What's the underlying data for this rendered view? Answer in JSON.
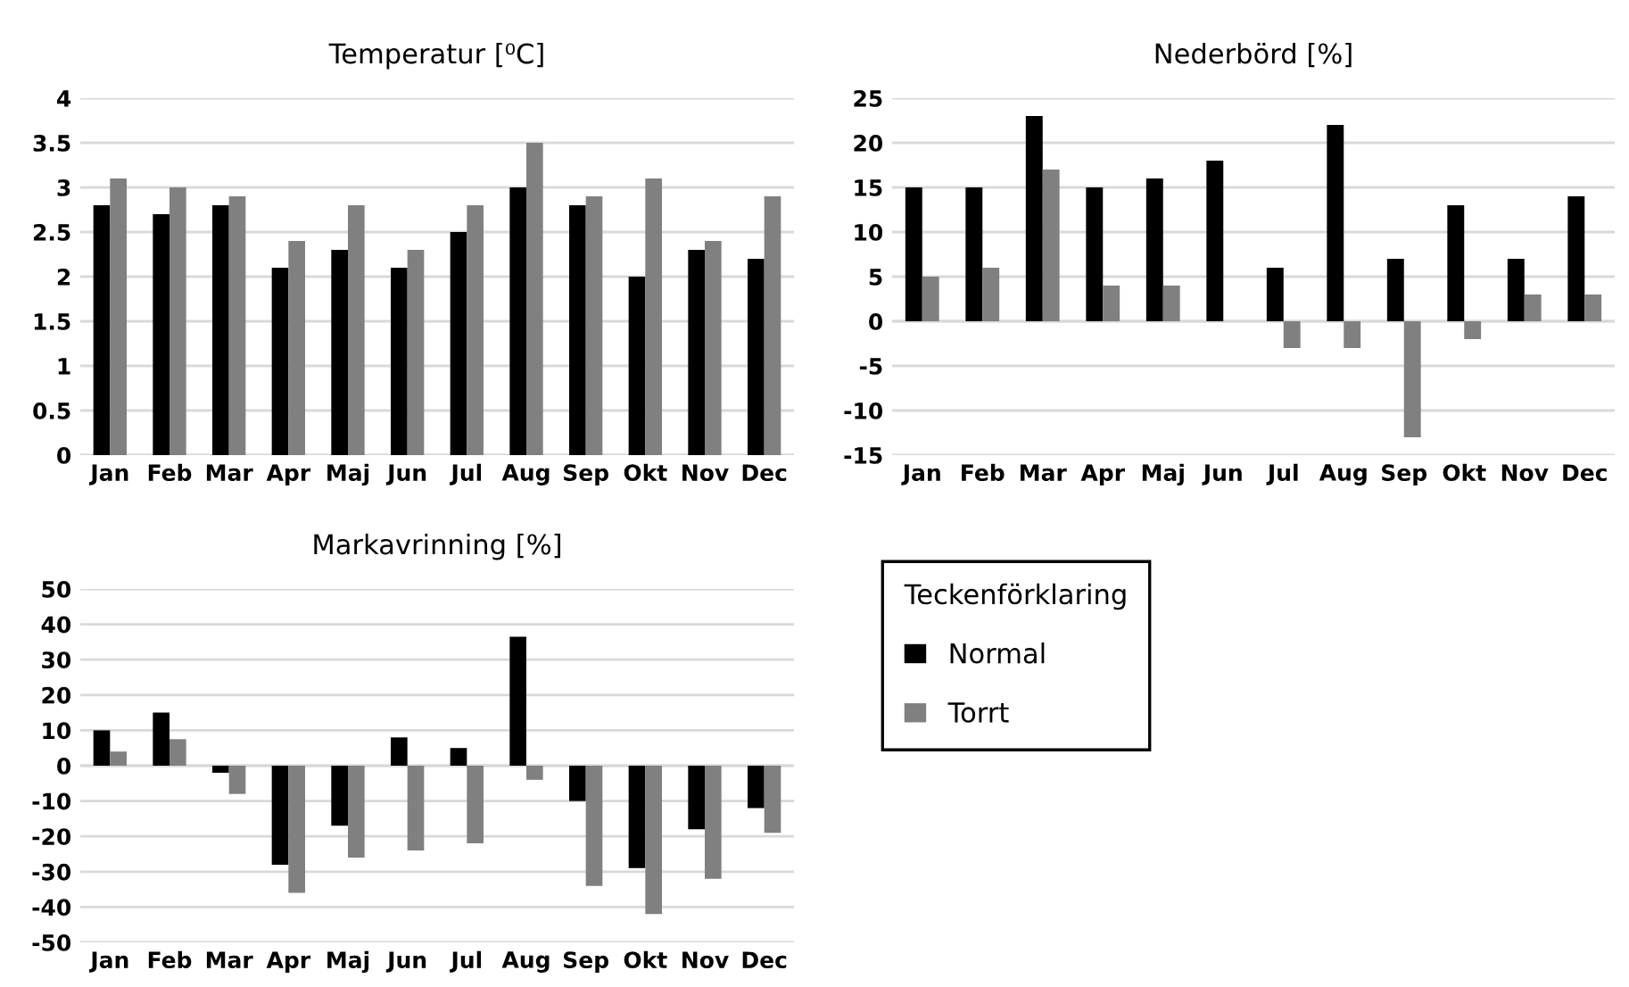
{
  "chart_data": [
    {
      "type": "bar",
      "title": "Temperatur [⁰C]",
      "categories": [
        "Jan",
        "Feb",
        "Mar",
        "Apr",
        "Maj",
        "Jun",
        "Jul",
        "Aug",
        "Sep",
        "Okt",
        "Nov",
        "Dec"
      ],
      "series": [
        {
          "name": "Normal",
          "color": "#000000",
          "values": [
            2.8,
            2.7,
            2.8,
            2.1,
            2.3,
            2.1,
            2.5,
            3.0,
            2.8,
            2.0,
            2.3,
            2.2
          ]
        },
        {
          "name": "Torrt",
          "color": "#808080",
          "values": [
            3.1,
            3.0,
            2.9,
            2.4,
            2.8,
            2.3,
            2.8,
            3.5,
            2.9,
            3.1,
            2.4,
            2.9
          ]
        }
      ],
      "ylim": [
        0,
        4
      ],
      "yticks": [
        0,
        0.5,
        1,
        1.5,
        2,
        2.5,
        3,
        3.5,
        4
      ],
      "grid": "y",
      "legend": "bottom right",
      "legend_title": "Teckenförklaring"
    },
    {
      "type": "bar",
      "title": "Nederbörd [%]",
      "categories": [
        "Jan",
        "Feb",
        "Mar",
        "Apr",
        "Maj",
        "Jun",
        "Jul",
        "Aug",
        "Sep",
        "Okt",
        "Nov",
        "Dec"
      ],
      "series": [
        {
          "color": "#000000",
          "values": [
            15,
            15,
            23,
            15,
            16,
            18,
            6,
            22,
            7,
            13,
            7,
            14
          ]
        },
        {
          "color": "#808080",
          "values": [
            5,
            6,
            17,
            4,
            4,
            0,
            -3,
            -3,
            -13,
            -2,
            3,
            3
          ]
        }
      ],
      "ylim": [
        -15,
        25
      ],
      "yticks": [
        -15,
        -10,
        -5,
        0,
        5,
        10,
        15,
        20,
        25
      ],
      "grid": "y"
    },
    {
      "type": "bar",
      "title": "Markavrinning [%]",
      "categories": [
        "Jan",
        "Feb",
        "Mar",
        "Apr",
        "Maj",
        "Jun",
        "Jul",
        "Aug",
        "Sep",
        "Okt",
        "Nov",
        "Dec"
      ],
      "series": [
        {
          "color": "#000000",
          "values": [
            10,
            15,
            -2,
            -28,
            -17,
            8,
            5,
            36.5,
            -10,
            -29,
            -18,
            -12
          ]
        },
        {
          "color": "#808080",
          "values": [
            4,
            7.5,
            -8,
            -36,
            -26,
            -24,
            -22,
            -4,
            -34,
            -42,
            -32,
            -19
          ]
        }
      ],
      "ylim": [
        -50,
        50
      ],
      "yticks": [
        -50,
        -40,
        -30,
        -20,
        -10,
        0,
        10,
        20,
        30,
        40,
        50
      ],
      "grid": "y"
    }
  ]
}
